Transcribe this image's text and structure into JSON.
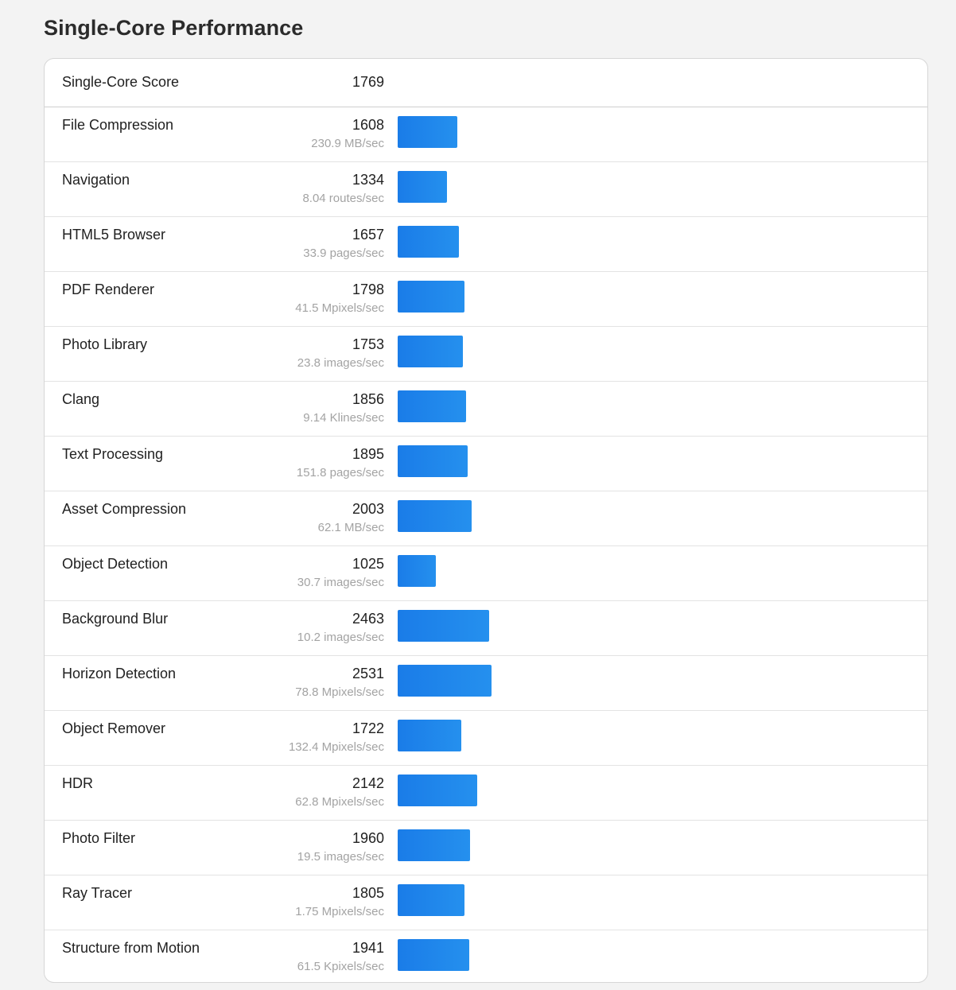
{
  "page": {
    "title": "Single-Core Performance"
  },
  "summary": {
    "label": "Single-Core Score",
    "score": "1769"
  },
  "colors": {
    "bar": "#1a7ce8",
    "bar_end": "#2590ee",
    "rate_text": "#a3a3a3",
    "background": "#f3f3f3"
  },
  "benchmarks": [
    {
      "name": "File Compression",
      "score": "1608",
      "rate": "230.9 MB/sec"
    },
    {
      "name": "Navigation",
      "score": "1334",
      "rate": "8.04 routes/sec"
    },
    {
      "name": "HTML5 Browser",
      "score": "1657",
      "rate": "33.9 pages/sec"
    },
    {
      "name": "PDF Renderer",
      "score": "1798",
      "rate": "41.5 Mpixels/sec"
    },
    {
      "name": "Photo Library",
      "score": "1753",
      "rate": "23.8 images/sec"
    },
    {
      "name": "Clang",
      "score": "1856",
      "rate": "9.14 Klines/sec"
    },
    {
      "name": "Text Processing",
      "score": "1895",
      "rate": "151.8 pages/sec"
    },
    {
      "name": "Asset Compression",
      "score": "2003",
      "rate": "62.1 MB/sec"
    },
    {
      "name": "Object Detection",
      "score": "1025",
      "rate": "30.7 images/sec"
    },
    {
      "name": "Background Blur",
      "score": "2463",
      "rate": "10.2 images/sec"
    },
    {
      "name": "Horizon Detection",
      "score": "2531",
      "rate": "78.8 Mpixels/sec"
    },
    {
      "name": "Object Remover",
      "score": "1722",
      "rate": "132.4 Mpixels/sec"
    },
    {
      "name": "HDR",
      "score": "2142",
      "rate": "62.8 Mpixels/sec"
    },
    {
      "name": "Photo Filter",
      "score": "1960",
      "rate": "19.5 images/sec"
    },
    {
      "name": "Ray Tracer",
      "score": "1805",
      "rate": "1.75 Mpixels/sec"
    },
    {
      "name": "Structure from Motion",
      "score": "1941",
      "rate": "61.5 Kpixels/sec"
    }
  ]
}
